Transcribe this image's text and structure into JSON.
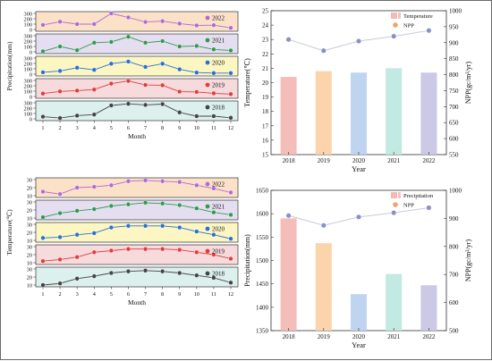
{
  "chart_data": [
    {
      "type": "line",
      "panel": "monthly-precipitation-strips",
      "xlabel": "Month",
      "ylabel": "Precipitation(mm)",
      "x": [
        1,
        2,
        3,
        4,
        5,
        6,
        7,
        8,
        9,
        10,
        11,
        12
      ],
      "ylim": [
        0,
        300
      ],
      "yticks": [
        0,
        100,
        200,
        300
      ],
      "series": [
        {
          "name": "2022",
          "band_color": "#fbe1c8",
          "dot_color": "#b06ad6",
          "values": [
            85,
            145,
            100,
            100,
            300,
            225,
            140,
            155,
            110,
            75,
            80,
            30
          ]
        },
        {
          "name": "2021",
          "band_color": "#e5def0",
          "dot_color": "#2f9a52",
          "values": [
            10,
            100,
            30,
            170,
            185,
            280,
            170,
            200,
            100,
            110,
            45,
            25
          ]
        },
        {
          "name": "2020",
          "band_color": "#fbf6c2",
          "dot_color": "#2b6fd6",
          "values": [
            35,
            60,
            120,
            80,
            195,
            235,
            135,
            195,
            90,
            30,
            20,
            20
          ]
        },
        {
          "name": "2019",
          "band_color": "#f7dadc",
          "dot_color": "#e23b3b",
          "values": [
            55,
            95,
            110,
            130,
            240,
            290,
            215,
            210,
            90,
            85,
            60,
            45
          ]
        },
        {
          "name": "2018",
          "band_color": "#dcf0ee",
          "dot_color": "#444444",
          "values": [
            40,
            15,
            60,
            80,
            250,
            280,
            260,
            275,
            120,
            50,
            50,
            20
          ]
        }
      ]
    },
    {
      "type": "bar",
      "panel": "temperature-npp",
      "xlabel": "Year",
      "ylabel": "Temperature(℃)",
      "y2label": "NPP(gc/m²/yr)",
      "categories": [
        "2018",
        "2019",
        "2020",
        "2021",
        "2022"
      ],
      "ylim": [
        15,
        25
      ],
      "yticks": [
        15,
        16,
        17,
        18,
        19,
        20,
        21,
        22,
        23,
        24,
        25
      ],
      "y2lim": [
        550,
        1000
      ],
      "y2ticks": [
        550,
        600,
        650,
        700,
        750,
        800,
        850,
        900,
        950,
        1000
      ],
      "legend": [
        "Temperature",
        "NPP"
      ],
      "bar_colors": [
        "#f2b9b5",
        "#fbd2a8",
        "#bcd2ee",
        "#bfe8e0",
        "#c8c6e4"
      ],
      "series": [
        {
          "name": "Temperature",
          "values": [
            20.4,
            20.8,
            20.7,
            21.0,
            20.7
          ]
        },
        {
          "name": "NPP",
          "axis": "right",
          "values": [
            910,
            875,
            905,
            920,
            938
          ]
        }
      ]
    },
    {
      "type": "line",
      "panel": "monthly-temperature-strips",
      "xlabel": "Month",
      "ylabel": "Temperature(℃)",
      "x": [
        1,
        2,
        3,
        4,
        5,
        6,
        7,
        8,
        9,
        10,
        11,
        12
      ],
      "ylim": [
        10,
        30
      ],
      "yticks": [
        10,
        20,
        30
      ],
      "series": [
        {
          "name": "2022",
          "band_color": "#fbe1c8",
          "dot_color": "#b06ad6",
          "values": [
            15,
            12,
            20,
            21,
            23,
            28,
            29,
            28,
            27,
            23,
            19,
            14
          ]
        },
        {
          "name": "2021",
          "band_color": "#e5def0",
          "dot_color": "#2f9a52",
          "values": [
            11,
            16,
            19,
            21,
            25,
            27,
            29,
            28,
            26,
            22,
            17,
            14
          ]
        },
        {
          "name": "2020",
          "band_color": "#fbf6c2",
          "dot_color": "#2b6fd6",
          "values": [
            13,
            14,
            17,
            19,
            26,
            28,
            28,
            28,
            26,
            21,
            17,
            12
          ]
        },
        {
          "name": "2019",
          "band_color": "#f7dadc",
          "dot_color": "#e23b3b",
          "values": [
            12,
            14,
            17,
            23,
            25,
            27,
            27,
            27,
            26,
            23,
            20,
            15
          ]
        },
        {
          "name": "2018",
          "band_color": "#dcf0ee",
          "dot_color": "#444444",
          "values": [
            10,
            12,
            18,
            21,
            25,
            27,
            28,
            27,
            25,
            22,
            19,
            13
          ]
        }
      ]
    },
    {
      "type": "bar",
      "panel": "precipitation-npp",
      "xlabel": "Year",
      "ylabel": "Precipitation(mm)",
      "y2label": "NPP(gc/m²/yr)",
      "categories": [
        "2018",
        "2019",
        "2020",
        "2021",
        "2022"
      ],
      "ylim": [
        1350,
        1650
      ],
      "yticks": [
        1350,
        1400,
        1450,
        1500,
        1550,
        1600,
        1650
      ],
      "y2lim": [
        500,
        1000
      ],
      "y2ticks": [
        500,
        600,
        700,
        800,
        900,
        1000
      ],
      "legend": [
        "Precipitation",
        "NPP"
      ],
      "bar_colors": [
        "#f2b9b5",
        "#fbd2a8",
        "#bcd2ee",
        "#bfe8e0",
        "#c8c6e4"
      ],
      "series": [
        {
          "name": "Precipitation",
          "values": [
            1590,
            1537,
            1428,
            1471,
            1447
          ]
        },
        {
          "name": "NPP",
          "axis": "right",
          "values": [
            910,
            875,
            905,
            920,
            938
          ]
        }
      ]
    }
  ]
}
